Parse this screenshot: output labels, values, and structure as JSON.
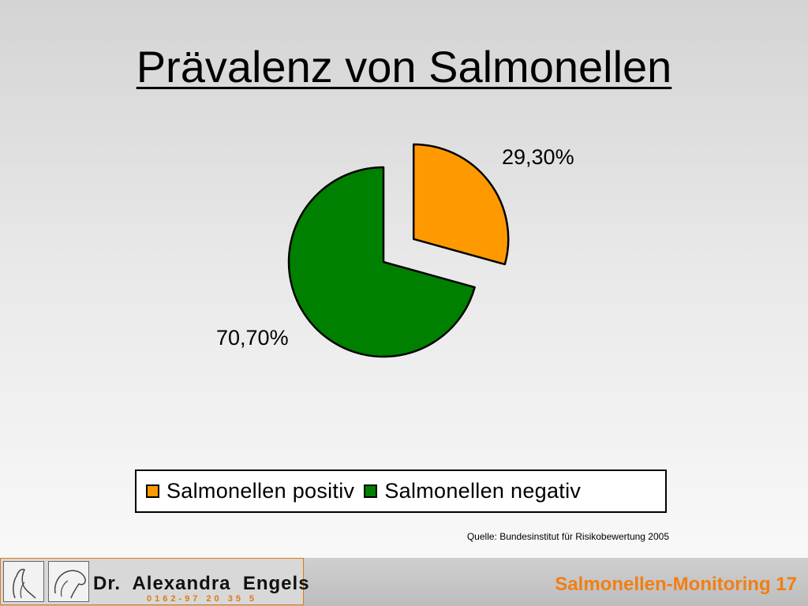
{
  "slide": {
    "title": "Prävalenz von Salmonellen",
    "source": "Quelle: Bundesinstitut für Risikobewertung 2005",
    "footer_label": "Salmonellen-Monitoring 17"
  },
  "logo": {
    "name": "Dr.  Alexandra  Engels",
    "phone": "0162-97 20 35 5"
  },
  "chart_data": {
    "type": "pie",
    "slices": [
      {
        "name": "Salmonellen positiv",
        "value": 29.3,
        "label": "29,30%",
        "color": "#ff9900",
        "exploded": true
      },
      {
        "name": "Salmonellen negativ",
        "value": 70.7,
        "label": "70,70%",
        "color": "#008000",
        "exploded": false
      }
    ],
    "legend": [
      "Salmonellen positiv",
      "Salmonellen negativ"
    ],
    "legend_position": "bottom"
  }
}
